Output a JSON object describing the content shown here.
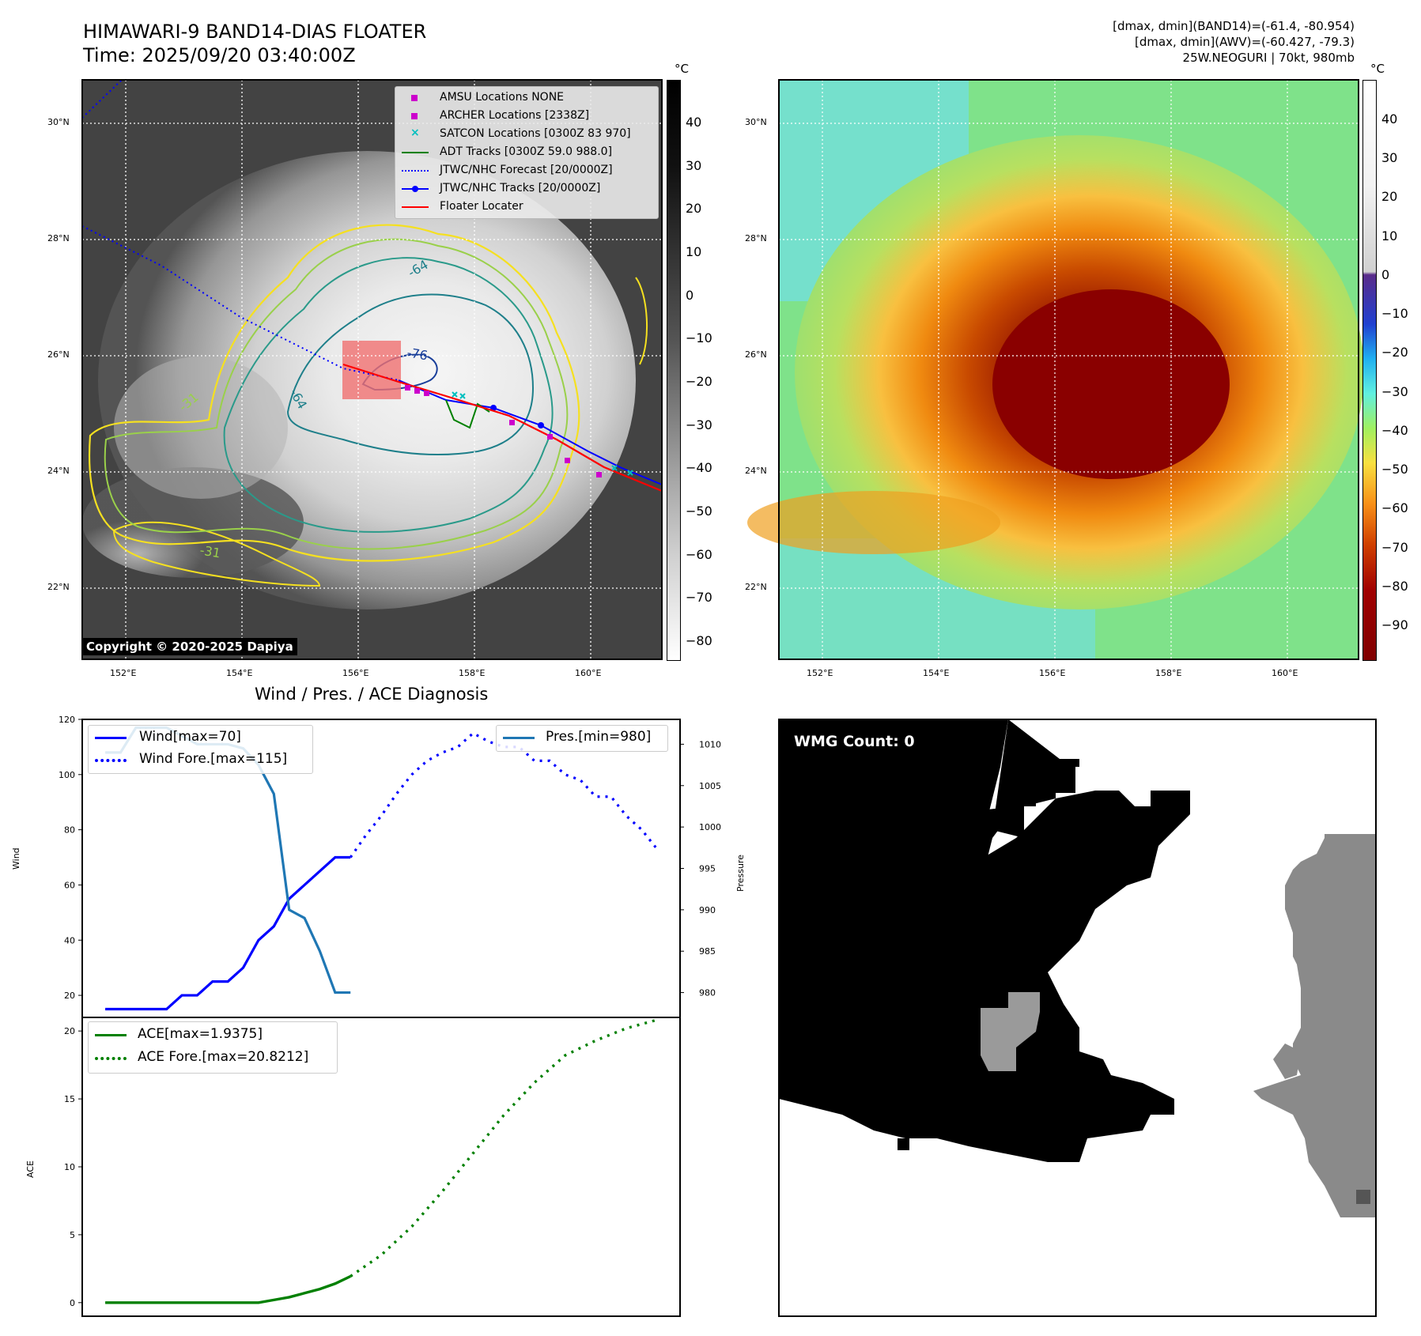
{
  "header": {
    "title_line1": "HIMAWARI-9 BAND14-DIAS FLOATER",
    "title_line2": "Time: 2025/09/20 03:40:00Z",
    "stats_line1": "[dmax, dmin](BAND14)=(-61.4, -80.954)",
    "stats_line2": "[dmax, dmin](AWV)=(-60.427, -79.3)",
    "stats_line3": "25W.NEOGURI | 70kt, 980mb"
  },
  "ir_map": {
    "lat_labels": [
      "30°N",
      "28°N",
      "26°N",
      "24°N",
      "22°N"
    ],
    "lon_labels": [
      "152°E",
      "154°E",
      "156°E",
      "158°E",
      "160°E"
    ],
    "contour_labels": [
      "-64",
      "-76",
      "-64",
      "-31",
      "-31"
    ],
    "copyright": "Copyright © 2020-2025 Dapiya",
    "colorbar_unit": "°C",
    "colorbar_ticks": [
      "40",
      "30",
      "20",
      "10",
      "0",
      "−10",
      "−20",
      "−30",
      "−40",
      "−50",
      "−60",
      "−70",
      "−80"
    ],
    "legend": [
      {
        "label": "AMSU Locations NONE",
        "color": "#cc00cc",
        "marker": "square"
      },
      {
        "label": "ARCHER Locations [2338Z]",
        "color": "#cc00cc",
        "marker": "square"
      },
      {
        "label": "SATCON Locations [0300Z 83 970]",
        "color": "#00bfbf",
        "marker": "x"
      },
      {
        "label": "ADT Tracks [0300Z 59.0 988.0]",
        "color": "#008000",
        "marker": "line"
      },
      {
        "label": "JTWC/NHC Forecast [20/0000Z]",
        "color": "#0000ff",
        "marker": "dotted"
      },
      {
        "label": "JTWC/NHC Tracks [20/0000Z]",
        "color": "#0000ff",
        "marker": "line-dot"
      },
      {
        "label": "Floater Locater",
        "color": "#ff0000",
        "marker": "line"
      }
    ]
  },
  "awv_map": {
    "lat_labels": [
      "30°N",
      "28°N",
      "26°N",
      "24°N",
      "22°N"
    ],
    "lon_labels": [
      "152°E",
      "154°E",
      "156°E",
      "158°E",
      "160°E"
    ],
    "colorbar_unit": "°C",
    "colorbar_ticks": [
      "40",
      "30",
      "20",
      "10",
      "0",
      "−10",
      "−20",
      "−30",
      "−40",
      "−50",
      "−60",
      "−70",
      "−80",
      "−90"
    ]
  },
  "wmg_panel": {
    "label": "WMG Count: 0"
  },
  "chart_data": [
    {
      "type": "line",
      "title": "Wind / Pres. / ACE Diagnosis",
      "ylabel": "Wind",
      "y2label": "Pressure",
      "ylim": [
        12,
        120
      ],
      "y2lim": [
        977,
        1013
      ],
      "yticks": [
        "120",
        "100",
        "80",
        "60",
        "40",
        "20"
      ],
      "y2ticks": [
        "1010",
        "1005",
        "1000",
        "995",
        "990",
        "985",
        "980"
      ],
      "legend_left": [
        "Wind[max=70]",
        "Wind Fore.[max=115]"
      ],
      "legend_right": [
        "Pres.[min=980]"
      ],
      "series": [
        {
          "name": "Wind[max=70]",
          "color": "#0000ff",
          "style": "solid",
          "x": [
            0,
            1,
            2,
            3,
            4,
            5,
            6,
            7,
            8,
            9,
            10,
            11,
            12,
            13,
            14,
            15,
            16
          ],
          "values": [
            15,
            15,
            15,
            15,
            15,
            20,
            20,
            25,
            25,
            30,
            40,
            45,
            55,
            60,
            65,
            70,
            70
          ]
        },
        {
          "name": "Wind Fore.[max=115]",
          "color": "#0000ff",
          "style": "dotted",
          "x": [
            16,
            17,
            18,
            19,
            20,
            21,
            22,
            23,
            24,
            25,
            26,
            27,
            28,
            29,
            30,
            31,
            32,
            33,
            34,
            35,
            36
          ],
          "values": [
            70,
            78,
            85,
            93,
            100,
            105,
            108,
            110,
            115,
            112,
            110,
            110,
            105,
            105,
            100,
            98,
            92,
            92,
            85,
            80,
            73
          ]
        },
        {
          "name": "Pres.[min=980]",
          "color": "#1f77b4",
          "style": "solid",
          "axis": "right",
          "x": [
            0,
            1,
            2,
            3,
            4,
            5,
            6,
            7,
            8,
            9,
            10,
            11,
            12,
            13,
            14,
            15,
            16
          ],
          "values": [
            1009,
            1009,
            1012,
            1012,
            1012,
            1011,
            1010,
            1010,
            1010,
            1009.5,
            1007.5,
            1004,
            990,
            989,
            985,
            980,
            980
          ]
        }
      ]
    },
    {
      "type": "line",
      "ylabel": "ACE",
      "ylim": [
        -1,
        21
      ],
      "yticks": [
        "20",
        "15",
        "10",
        "5",
        "0"
      ],
      "legend": [
        "ACE[max=1.9375]",
        "ACE Fore.[max=20.8212]"
      ],
      "series": [
        {
          "name": "ACE[max=1.9375]",
          "color": "#008000",
          "style": "solid",
          "x": [
            0,
            2,
            4,
            6,
            8,
            10,
            11,
            12,
            13,
            14,
            15,
            16
          ],
          "values": [
            0,
            0,
            0,
            0,
            0,
            0,
            0.2,
            0.4,
            0.7,
            1.0,
            1.4,
            1.94
          ]
        },
        {
          "name": "ACE Fore.[max=20.8212]",
          "color": "#008000",
          "style": "dotted",
          "x": [
            16,
            18,
            20,
            22,
            24,
            26,
            28,
            30,
            32,
            34,
            36
          ],
          "values": [
            1.94,
            3.5,
            5.6,
            8.2,
            11.0,
            13.8,
            16.2,
            18.2,
            19.3,
            20.2,
            20.82
          ]
        }
      ]
    }
  ]
}
